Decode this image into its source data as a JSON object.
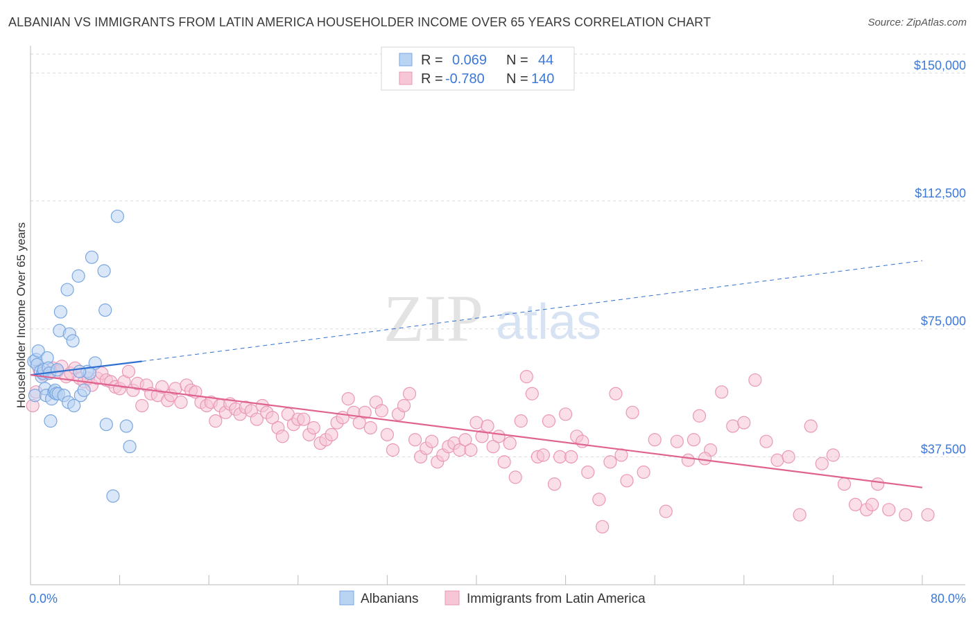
{
  "title": "ALBANIAN VS IMMIGRANTS FROM LATIN AMERICA HOUSEHOLDER INCOME OVER 65 YEARS CORRELATION CHART",
  "source": "Source: ZipAtlas.com",
  "watermark": {
    "zip": "ZIP",
    "atlas": "atlas"
  },
  "colors": {
    "albanians_fill": "#b9d3f3",
    "albanians_stroke": "#7aa6e0",
    "albanians_line": "#2f6fcf",
    "latin_fill": "#f6c5d6",
    "latin_stroke": "#ea97b6",
    "latin_line": "#e0628f",
    "tick_text": "#3c78d8",
    "grid": "#d9d9d9"
  },
  "stats": [
    {
      "r_label": "R =",
      "r_value": "0.069",
      "n_label": "N =",
      "n_value": "44"
    },
    {
      "r_label": "R =",
      "r_value": "-0.780",
      "n_label": "N =",
      "n_value": "140"
    }
  ],
  "chart_data": {
    "type": "scatter",
    "title": "ALBANIAN VS IMMIGRANTS FROM LATIN AMERICA HOUSEHOLDER INCOME OVER 65 YEARS CORRELATION CHART",
    "xlabel": "",
    "ylabel": "Householder Income Over 65 years",
    "x_unit": "%",
    "xlim": [
      0,
      80
    ],
    "ylim": [
      0,
      158000
    ],
    "x_tick_labels": [
      "0.0%",
      "80.0%"
    ],
    "y_ticks": [
      37500,
      75000,
      112500,
      150000
    ],
    "y_tick_labels": [
      "$37,500",
      "$75,000",
      "$112,500",
      "$150,000"
    ],
    "grid": "horizontal dashed",
    "legend_position": "top-center",
    "series": [
      {
        "name": "Albanians",
        "points": [
          [
            0.3,
            65500
          ],
          [
            0.5,
            66000
          ],
          [
            0.4,
            55500
          ],
          [
            0.6,
            64500
          ],
          [
            0.7,
            68500
          ],
          [
            0.9,
            62500
          ],
          [
            1.0,
            61000
          ],
          [
            1.1,
            62000
          ],
          [
            1.2,
            63000
          ],
          [
            1.3,
            57500
          ],
          [
            1.4,
            55500
          ],
          [
            1.5,
            66500
          ],
          [
            1.6,
            63500
          ],
          [
            1.7,
            62000
          ],
          [
            1.8,
            48000
          ],
          [
            1.9,
            54500
          ],
          [
            2.1,
            56500
          ],
          [
            2.2,
            57000
          ],
          [
            2.3,
            56000
          ],
          [
            2.4,
            63000
          ],
          [
            2.5,
            56000
          ],
          [
            2.6,
            74500
          ],
          [
            2.7,
            80000
          ],
          [
            3.0,
            55500
          ],
          [
            3.3,
            86500
          ],
          [
            3.4,
            53500
          ],
          [
            3.5,
            73500
          ],
          [
            3.8,
            71500
          ],
          [
            4.3,
            90500
          ],
          [
            4.5,
            55500
          ],
          [
            4.8,
            57000
          ],
          [
            5.1,
            62500
          ],
          [
            5.5,
            96000
          ],
          [
            5.8,
            65000
          ],
          [
            5.3,
            62000
          ],
          [
            6.6,
            92000
          ],
          [
            6.7,
            80500
          ],
          [
            7.8,
            108000
          ],
          [
            8.6,
            46500
          ],
          [
            8.9,
            40500
          ],
          [
            7.4,
            26000
          ],
          [
            6.8,
            47000
          ],
          [
            3.9,
            52500
          ],
          [
            4.4,
            62500
          ]
        ]
      },
      {
        "name": "Immigrants from Latin America",
        "points": [
          [
            0.2,
            52500
          ],
          [
            0.5,
            56500
          ],
          [
            0.8,
            63000
          ],
          [
            1.2,
            61500
          ],
          [
            1.6,
            62000
          ],
          [
            2.0,
            63500
          ],
          [
            2.4,
            62500
          ],
          [
            2.8,
            64000
          ],
          [
            3.2,
            61000
          ],
          [
            3.6,
            62000
          ],
          [
            4.0,
            63500
          ],
          [
            4.4,
            60500
          ],
          [
            4.8,
            59500
          ],
          [
            5.2,
            60500
          ],
          [
            5.5,
            58500
          ],
          [
            6.0,
            60500
          ],
          [
            6.4,
            62000
          ],
          [
            6.8,
            60000
          ],
          [
            7.2,
            59500
          ],
          [
            7.6,
            58000
          ],
          [
            8.0,
            57500
          ],
          [
            8.4,
            59500
          ],
          [
            8.8,
            62500
          ],
          [
            9.2,
            57000
          ],
          [
            9.6,
            59000
          ],
          [
            10.0,
            52500
          ],
          [
            10.4,
            58500
          ],
          [
            10.8,
            56000
          ],
          [
            11.4,
            55500
          ],
          [
            11.8,
            58000
          ],
          [
            12.3,
            54000
          ],
          [
            12.6,
            55500
          ],
          [
            13.0,
            57500
          ],
          [
            13.5,
            53500
          ],
          [
            14.0,
            58500
          ],
          [
            14.4,
            57000
          ],
          [
            14.8,
            56500
          ],
          [
            15.3,
            53500
          ],
          [
            15.8,
            52500
          ],
          [
            16.2,
            53500
          ],
          [
            16.6,
            48000
          ],
          [
            17.0,
            52500
          ],
          [
            17.5,
            50500
          ],
          [
            17.9,
            53000
          ],
          [
            18.4,
            51500
          ],
          [
            18.8,
            50000
          ],
          [
            19.3,
            52000
          ],
          [
            19.8,
            51000
          ],
          [
            20.3,
            48500
          ],
          [
            20.8,
            52500
          ],
          [
            21.2,
            50500
          ],
          [
            21.7,
            49000
          ],
          [
            22.2,
            46000
          ],
          [
            22.6,
            43500
          ],
          [
            23.1,
            50000
          ],
          [
            23.6,
            47000
          ],
          [
            24.0,
            48500
          ],
          [
            24.5,
            48500
          ],
          [
            25.0,
            44000
          ],
          [
            25.4,
            46000
          ],
          [
            26.0,
            41500
          ],
          [
            26.5,
            42500
          ],
          [
            27.0,
            44000
          ],
          [
            27.5,
            47500
          ],
          [
            28.0,
            49000
          ],
          [
            28.5,
            54500
          ],
          [
            29.0,
            50500
          ],
          [
            29.5,
            47500
          ],
          [
            30.0,
            50500
          ],
          [
            30.5,
            46000
          ],
          [
            31.0,
            53500
          ],
          [
            31.5,
            51000
          ],
          [
            32.0,
            44000
          ],
          [
            32.5,
            39500
          ],
          [
            33.0,
            50000
          ],
          [
            33.5,
            52500
          ],
          [
            34.0,
            56000
          ],
          [
            34.5,
            42500
          ],
          [
            35.0,
            37500
          ],
          [
            35.5,
            40000
          ],
          [
            36.0,
            42000
          ],
          [
            36.5,
            36000
          ],
          [
            37.0,
            38000
          ],
          [
            37.5,
            40500
          ],
          [
            38.0,
            41500
          ],
          [
            38.5,
            39500
          ],
          [
            39.0,
            42500
          ],
          [
            39.5,
            39500
          ],
          [
            40.0,
            47500
          ],
          [
            40.5,
            43500
          ],
          [
            41.0,
            46500
          ],
          [
            41.5,
            40500
          ],
          [
            42.0,
            43500
          ],
          [
            42.5,
            36000
          ],
          [
            43.0,
            41500
          ],
          [
            43.5,
            31500
          ],
          [
            44.0,
            48000
          ],
          [
            44.5,
            61000
          ],
          [
            45.0,
            56000
          ],
          [
            45.5,
            37500
          ],
          [
            46.0,
            38000
          ],
          [
            46.5,
            48000
          ],
          [
            47.0,
            29500
          ],
          [
            47.5,
            37500
          ],
          [
            48.0,
            50000
          ],
          [
            48.5,
            37500
          ],
          [
            49.0,
            43500
          ],
          [
            49.5,
            42000
          ],
          [
            50.0,
            33000
          ],
          [
            51.0,
            25000
          ],
          [
            51.3,
            17000
          ],
          [
            52.0,
            36000
          ],
          [
            52.5,
            56000
          ],
          [
            53.0,
            38000
          ],
          [
            53.5,
            30500
          ],
          [
            54.0,
            50500
          ],
          [
            55.0,
            33000
          ],
          [
            56.0,
            42500
          ],
          [
            57.0,
            21500
          ],
          [
            58.0,
            42000
          ],
          [
            59.0,
            36500
          ],
          [
            59.5,
            42500
          ],
          [
            60.0,
            49500
          ],
          [
            61.0,
            39500
          ],
          [
            62.0,
            56500
          ],
          [
            63.0,
            46500
          ],
          [
            64.0,
            47500
          ],
          [
            65.0,
            60000
          ],
          [
            66.0,
            42000
          ],
          [
            67.0,
            36500
          ],
          [
            68.0,
            37500
          ],
          [
            69.0,
            20500
          ],
          [
            70.0,
            46500
          ],
          [
            71.0,
            35500
          ],
          [
            72.0,
            38000
          ],
          [
            73.0,
            29500
          ],
          [
            74.0,
            23500
          ],
          [
            75.0,
            22000
          ],
          [
            75.5,
            23500
          ],
          [
            76.0,
            29500
          ],
          [
            77.0,
            22000
          ],
          [
            78.5,
            20500
          ],
          [
            80.5,
            20500
          ],
          [
            60.5,
            37000
          ]
        ]
      }
    ],
    "trend_lines": [
      {
        "series": "Albanians",
        "x": [
          0,
          10
        ],
        "y": [
          61500,
          65500
        ],
        "style": "solid"
      },
      {
        "series": "Albanians",
        "x": [
          10,
          80
        ],
        "y": [
          65500,
          95000
        ],
        "style": "dashed"
      },
      {
        "series": "Immigrants from Latin America",
        "x": [
          0,
          80
        ],
        "y": [
          61500,
          28500
        ],
        "style": "solid"
      }
    ]
  }
}
